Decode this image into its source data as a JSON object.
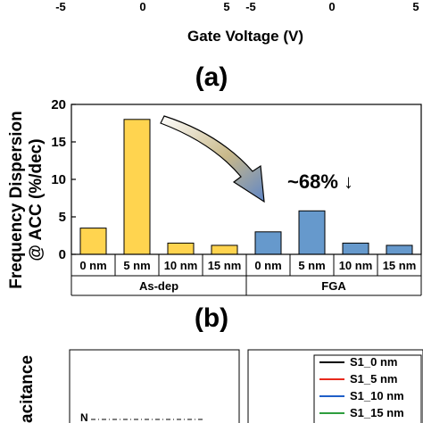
{
  "top_panel": {
    "ticks_left": [
      "-5",
      "0",
      "5"
    ],
    "ticks_right": [
      "-5",
      "0",
      "5"
    ],
    "xlabel": "Gate Voltage (V)",
    "panel_label": "(a)"
  },
  "chart_data": {
    "type": "bar",
    "panel_label": "(b)",
    "ylabel_line1": "Frequency Dispersion",
    "ylabel_line2": "@ ACC (%/dec)",
    "ylim": [
      0,
      20
    ],
    "yticks": [
      "0",
      "5",
      "10",
      "15",
      "20"
    ],
    "categories": [
      "0 nm",
      "5 nm",
      "10 nm",
      "15 nm",
      "0 nm",
      "5 nm",
      "10 nm",
      "15 nm"
    ],
    "groups": [
      "As-dep",
      "FGA"
    ],
    "series": [
      {
        "values": [
          3.5,
          18.0,
          1.5,
          1.2,
          0,
          0,
          0,
          0
        ],
        "color": "#FFD44F"
      },
      {
        "values": [
          0,
          0,
          0,
          0,
          3.0,
          5.8,
          1.5,
          1.2
        ],
        "color": "#6699CC"
      }
    ],
    "annotation": "~68% ↓",
    "annotation_color": "#1F3FD1"
  },
  "bottom_panel": {
    "ylabel_fragment": "acitance",
    "legend": [
      "S1_0 nm",
      "S1_5 nm",
      "S1_10 nm",
      "S1_15 nm"
    ],
    "legend_colors": [
      "#000000",
      "#E8291C",
      "#1F5FC8",
      "#2E9E3E"
    ]
  }
}
